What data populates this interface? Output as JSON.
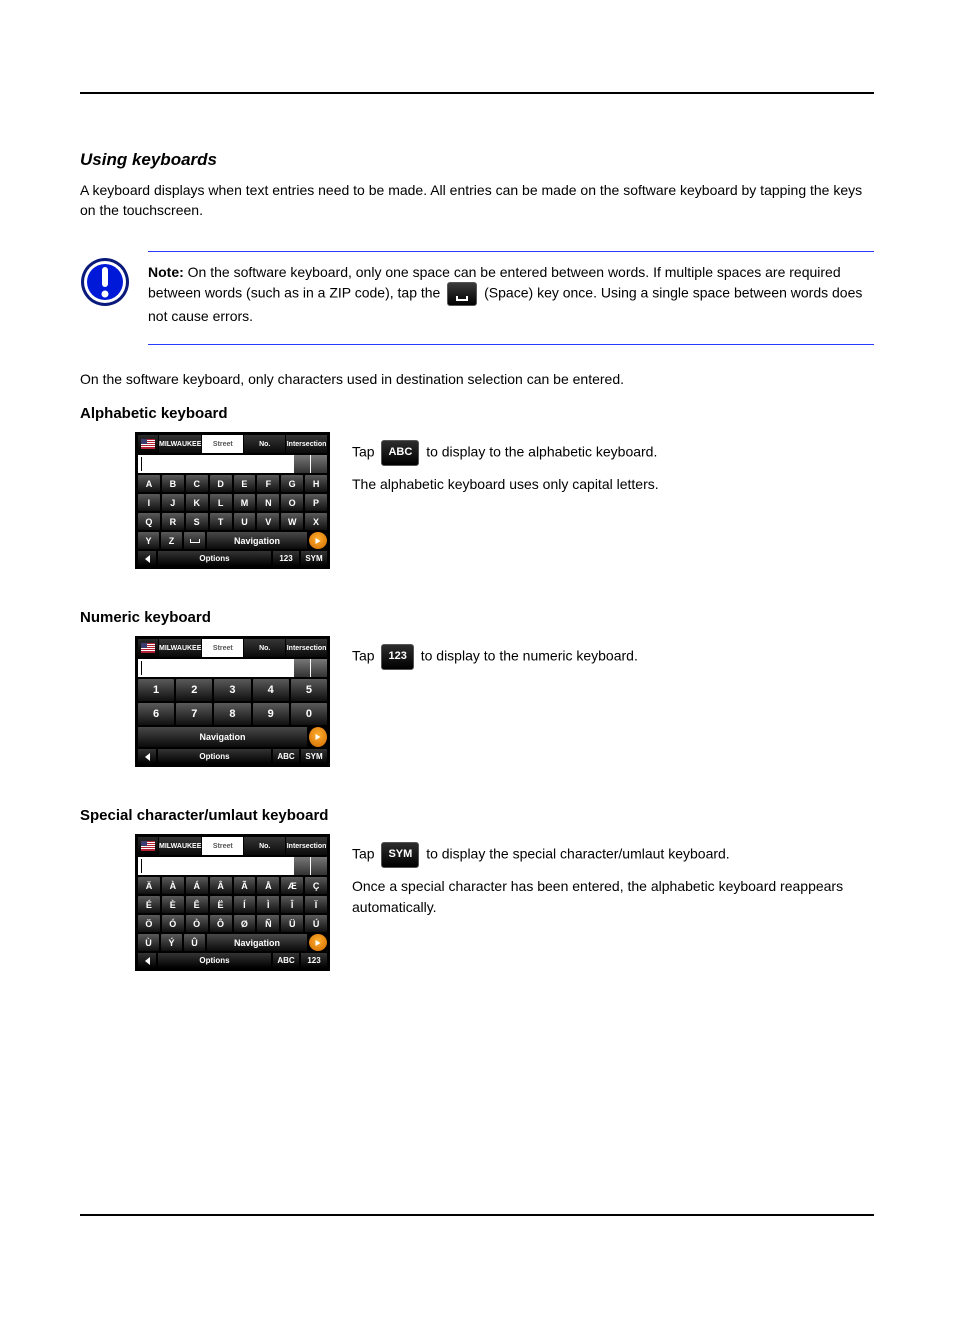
{
  "header_rule_color": "#000000",
  "section": {
    "title": "Using keyboards"
  },
  "intro": "A keyboard displays when text entries need to be made. All entries can be made on the software keyboard by tapping the keys on the touchscreen.",
  "note": {
    "label": "Note:",
    "text_before": " On the software keyboard, only one space can be entered between words. If multiple spaces are required between words (such as in a ZIP code), tap the ",
    "key_caption": "(Space)",
    "text_after": " key once. Using a single space between words does not cause errors."
  },
  "keyboard_intro": "On the software keyboard, only characters used in destination selection can be entered.",
  "alpha": {
    "heading": "Alphabetic keyboard",
    "text_before": "Tap ",
    "button_label": "ABC",
    "text_after": " to display to the alphabetic keyboard.",
    "desc": "The alphabetic keyboard uses only capital letters.",
    "tabs": [
      "MILWAUKEE",
      "Street",
      "No.",
      "Intersection"
    ],
    "active_tab_index": 1,
    "rows": [
      [
        "A",
        "B",
        "C",
        "D",
        "E",
        "F",
        "G",
        "H"
      ],
      [
        "I",
        "J",
        "K",
        "L",
        "M",
        "N",
        "O",
        "P"
      ],
      [
        "Q",
        "R",
        "S",
        "T",
        "U",
        "V",
        "W",
        "X"
      ]
    ],
    "last_row": [
      "Y",
      "Z"
    ],
    "suggest": "Navigation",
    "footer": {
      "options": "Options",
      "modes": [
        "123",
        "SYM"
      ]
    }
  },
  "numeric": {
    "heading": "Numeric keyboard",
    "text_before": "Tap ",
    "button_label": "123",
    "text_after": " to display to the numeric keyboard.",
    "tabs": [
      "MILWAUKEE",
      "Street",
      "No.",
      "Intersection"
    ],
    "active_tab_index": 1,
    "rows": [
      [
        "1",
        "2",
        "3",
        "4",
        "5"
      ],
      [
        "6",
        "7",
        "8",
        "9",
        "0"
      ]
    ],
    "suggest": "Navigation",
    "footer": {
      "options": "Options",
      "modes": [
        "ABC",
        "SYM"
      ]
    }
  },
  "symbol": {
    "heading": "Special character/umlaut keyboard",
    "text_before": "Tap ",
    "button_label": "SYM",
    "text_after": " to display the special character/umlaut keyboard.",
    "extra": "Once a special character has been entered, the alphabetic keyboard reappears automatically.",
    "tabs": [
      "MILWAUKEE",
      "Street",
      "No.",
      "Intersection"
    ],
    "active_tab_index": 1,
    "rows": [
      [
        "Ä",
        "À",
        "Á",
        "Â",
        "Ã",
        "Å",
        "Æ",
        "Ç"
      ],
      [
        "É",
        "È",
        "Ê",
        "Ë",
        "Í",
        "Ì",
        "Î",
        "Ï"
      ],
      [
        "Ö",
        "Ó",
        "Ò",
        "Ô",
        "Ø",
        "Ñ",
        "Ü",
        "Ú"
      ]
    ],
    "last_row": [
      "Ù",
      "Ý",
      "Û"
    ],
    "suggest": "Navigation",
    "footer": {
      "options": "Options",
      "modes": [
        "ABC",
        "123"
      ]
    }
  },
  "colors": {
    "note_circle_outer": "#0a1a7a",
    "note_circle_inner": "#0018d8",
    "note_rule": "#2a3bff",
    "key_bg_top": "#5a5a5a",
    "key_bg_bottom": "#101010",
    "go_color": "#ffae2e"
  }
}
